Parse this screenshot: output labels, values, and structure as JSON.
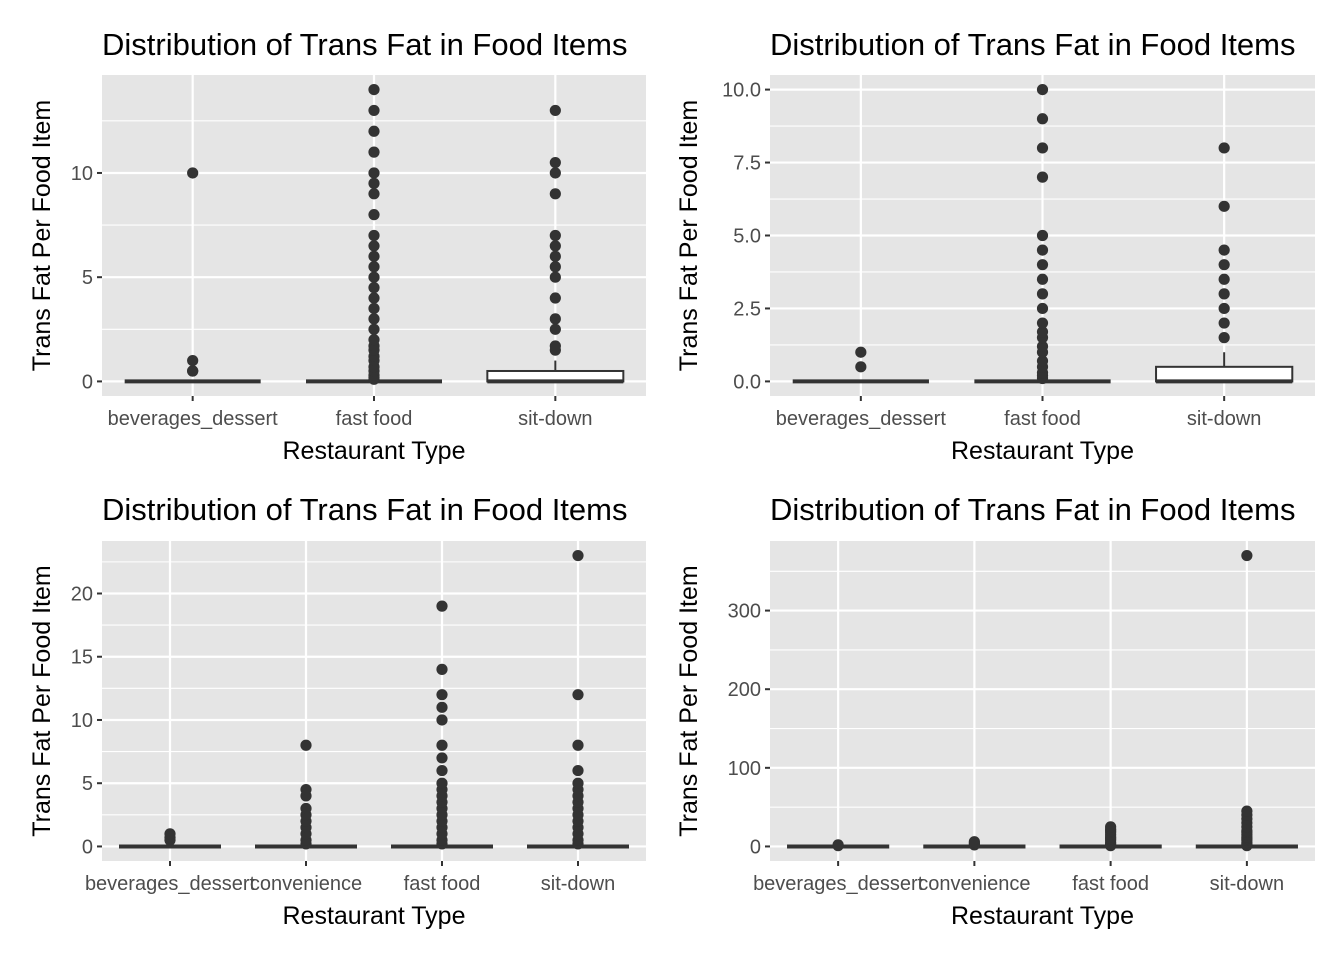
{
  "figure": {
    "background": "#FFFFFF",
    "panel_background": "#E5E5E5",
    "grid_color": "#FFFFFF",
    "point_color": "#333333",
    "box_fill": "#FFFFFF",
    "box_stroke": "#333333"
  },
  "chart_data": [
    {
      "type": "box",
      "title": "Distribution of Trans Fat in Food Items",
      "xlabel": "Restaurant Type",
      "ylabel": "Trans Fat Per Food Item",
      "categories": [
        "beverages_dessert",
        "fast food",
        "sit-down"
      ],
      "ylim": [
        -0.7,
        14.7
      ],
      "yticks": [
        0,
        5,
        10
      ],
      "ytick_labels": [
        "0",
        "5",
        "10"
      ],
      "boxes": [
        {
          "category": "beverages_dessert",
          "min": 0,
          "q1": 0,
          "median": 0,
          "q3": 0,
          "max": 0,
          "outliers": [
            0.5,
            0.5,
            1,
            10
          ]
        },
        {
          "category": "fast food",
          "min": 0,
          "q1": 0,
          "median": 0,
          "q3": 0,
          "max": 0,
          "outliers": [
            0.1,
            0.2,
            0.3,
            0.5,
            0.7,
            1,
            1.2,
            1.5,
            1.7,
            2,
            2.5,
            3,
            3.5,
            4,
            4.5,
            5,
            5.5,
            6,
            6.5,
            7,
            8,
            9,
            9.5,
            10,
            11,
            12,
            13,
            14
          ]
        },
        {
          "category": "sit-down",
          "min": 0,
          "q1": 0,
          "median": 0,
          "q3": 0.5,
          "max": 1,
          "outliers": [
            1.5,
            1.7,
            2.5,
            3,
            4,
            5,
            5.5,
            6,
            6.5,
            7,
            9,
            10,
            10.5,
            13
          ]
        }
      ]
    },
    {
      "type": "box",
      "title": "Distribution of Trans Fat in Food Items",
      "xlabel": "Restaurant Type",
      "ylabel": "Trans Fat Per Food Item",
      "categories": [
        "beverages_dessert",
        "fast food",
        "sit-down"
      ],
      "ylim": [
        -0.5,
        10.5
      ],
      "yticks": [
        0,
        2.5,
        5,
        7.5,
        10
      ],
      "ytick_labels": [
        "0.0",
        "2.5",
        "5.0",
        "7.5",
        "10.0"
      ],
      "boxes": [
        {
          "category": "beverages_dessert",
          "min": 0,
          "q1": 0,
          "median": 0,
          "q3": 0,
          "max": 0,
          "outliers": [
            0.5,
            1
          ]
        },
        {
          "category": "fast food",
          "min": 0,
          "q1": 0,
          "median": 0,
          "q3": 0,
          "max": 0,
          "outliers": [
            0.1,
            0.2,
            0.3,
            0.5,
            0.7,
            1,
            1.2,
            1.5,
            1.7,
            2,
            2.5,
            3,
            3.5,
            4,
            4.5,
            5,
            7,
            8,
            9,
            10
          ]
        },
        {
          "category": "sit-down",
          "min": 0,
          "q1": 0,
          "median": 0,
          "q3": 0.5,
          "max": 1,
          "outliers": [
            1.5,
            2,
            2.5,
            3,
            3.5,
            4,
            4.5,
            6,
            8
          ]
        }
      ]
    },
    {
      "type": "box",
      "title": "Distribution of Trans Fat in Food Items",
      "xlabel": "Restaurant Type",
      "ylabel": "Trans Fat Per Food Item",
      "categories": [
        "beverages_dessert",
        "convenience",
        "fast food",
        "sit-down"
      ],
      "ylim": [
        -1.15,
        24.15
      ],
      "yticks": [
        0,
        5,
        10,
        15,
        20
      ],
      "ytick_labels": [
        "0",
        "5",
        "10",
        "15",
        "20"
      ],
      "boxes": [
        {
          "category": "beverages_dessert",
          "min": 0,
          "q1": 0,
          "median": 0,
          "q3": 0,
          "max": 0,
          "outliers": [
            0.5,
            0.7,
            1
          ]
        },
        {
          "category": "convenience",
          "min": 0,
          "q1": 0,
          "median": 0,
          "q3": 0,
          "max": 0,
          "outliers": [
            0.2,
            0.5,
            1,
            1.5,
            2,
            2.5,
            3,
            4,
            4.5,
            8
          ]
        },
        {
          "category": "fast food",
          "min": 0,
          "q1": 0,
          "median": 0,
          "q3": 0,
          "max": 0,
          "outliers": [
            0.2,
            0.5,
            1,
            1.5,
            2,
            2.5,
            3,
            3.5,
            4,
            4.5,
            5,
            6,
            7,
            8,
            10,
            11,
            12,
            14,
            19
          ]
        },
        {
          "category": "sit-down",
          "min": 0,
          "q1": 0,
          "median": 0,
          "q3": 0,
          "max": 0,
          "outliers": [
            0.2,
            0.5,
            1,
            1.5,
            2,
            2.5,
            3,
            3.5,
            4,
            4.5,
            5,
            6,
            8,
            12,
            23
          ]
        }
      ]
    },
    {
      "type": "box",
      "title": "Distribution of Trans Fat in Food Items",
      "xlabel": "Restaurant Type",
      "ylabel": "Trans Fat Per Food Item",
      "categories": [
        "beverages_dessert",
        "convenience",
        "fast food",
        "sit-down"
      ],
      "ylim": [
        -18.5,
        388.5
      ],
      "yticks": [
        0,
        100,
        200,
        300
      ],
      "ytick_labels": [
        "0",
        "100",
        "200",
        "300"
      ],
      "boxes": [
        {
          "category": "beverages_dessert",
          "min": 0,
          "q1": 0,
          "median": 0,
          "q3": 0,
          "max": 0,
          "outliers": [
            1,
            2
          ]
        },
        {
          "category": "convenience",
          "min": 0,
          "q1": 0,
          "median": 0,
          "q3": 0,
          "max": 0,
          "outliers": [
            2,
            4,
            6
          ]
        },
        {
          "category": "fast food",
          "min": 0,
          "q1": 0,
          "median": 0,
          "q3": 0,
          "max": 0,
          "outliers": [
            1,
            3,
            5,
            8,
            10,
            12,
            15,
            18,
            20,
            22,
            25
          ]
        },
        {
          "category": "sit-down",
          "min": 0,
          "q1": 0,
          "median": 0,
          "q3": 0,
          "max": 0,
          "outliers": [
            1,
            3,
            5,
            8,
            10,
            12,
            15,
            18,
            20,
            25,
            30,
            35,
            40,
            45,
            370
          ]
        }
      ]
    }
  ]
}
